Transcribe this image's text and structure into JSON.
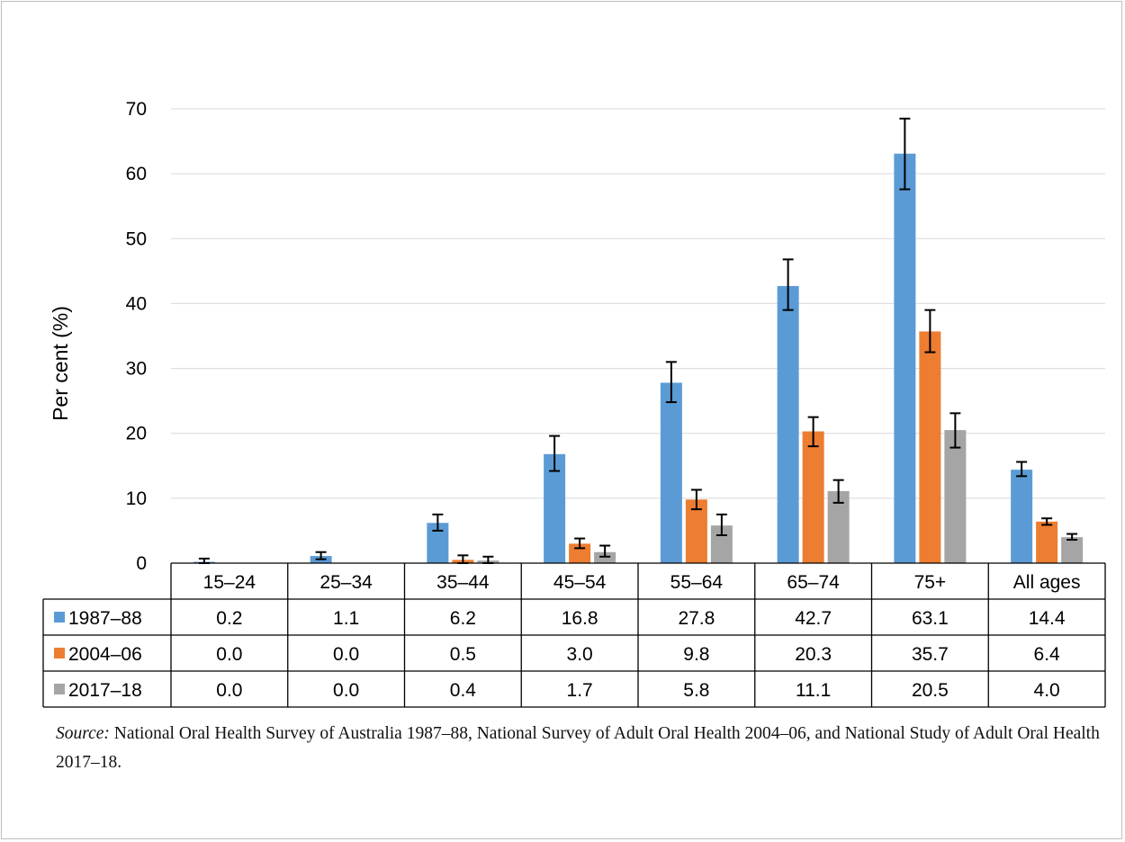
{
  "chart_data": {
    "type": "bar",
    "title": "",
    "ylabel": "Per cent (%)",
    "xlabel": "",
    "ylim": [
      0,
      70
    ],
    "yticks": [
      0,
      10,
      20,
      30,
      40,
      50,
      60,
      70
    ],
    "grid": true,
    "categories": [
      "15–24",
      "25–34",
      "35–44",
      "45–54",
      "55–64",
      "65–74",
      "75+",
      "All ages"
    ],
    "series": [
      {
        "name": "1987–88",
        "color": "#5b9bd5",
        "values": [
          0.2,
          1.1,
          6.2,
          16.8,
          27.8,
          42.7,
          63.1,
          14.4
        ],
        "display": [
          "0.2",
          "1.1",
          "6.2",
          "16.8",
          "27.8",
          "42.7",
          "63.1",
          "14.4"
        ],
        "err_low": [
          0.0,
          0.6,
          5.0,
          14.2,
          24.8,
          39.0,
          57.6,
          13.4
        ],
        "err_high": [
          0.7,
          1.7,
          7.5,
          19.6,
          31.0,
          46.8,
          68.5,
          15.6
        ]
      },
      {
        "name": "2004–06",
        "color": "#ed7d31",
        "values": [
          0.0,
          0.0,
          0.5,
          3.0,
          9.8,
          20.3,
          35.7,
          6.4
        ],
        "display": [
          "0.0",
          "0.0",
          "0.5",
          "3.0",
          "9.8",
          "20.3",
          "35.7",
          "6.4"
        ],
        "err_low": [
          null,
          null,
          0.0,
          2.3,
          8.3,
          18.0,
          32.5,
          5.9
        ],
        "err_high": [
          null,
          null,
          1.2,
          3.8,
          11.3,
          22.5,
          39.0,
          6.9
        ]
      },
      {
        "name": "2017–18",
        "color": "#a5a5a5",
        "values": [
          0.0,
          0.0,
          0.4,
          1.7,
          5.8,
          11.1,
          20.5,
          4.0
        ],
        "display": [
          "0.0",
          "0.0",
          "0.4",
          "1.7",
          "5.8",
          "11.1",
          "20.5",
          "4.0"
        ],
        "err_low": [
          null,
          null,
          0.0,
          1.0,
          4.3,
          9.3,
          17.8,
          3.6
        ],
        "err_high": [
          null,
          null,
          1.0,
          2.7,
          7.5,
          12.8,
          23.1,
          4.5
        ]
      }
    ]
  },
  "source": {
    "label": "Source:",
    "text": " National Oral Health Survey of Australia 1987–88, National Survey of Adult Oral Health 2004–06, and National Study of Adult Oral Health 2017–18."
  }
}
